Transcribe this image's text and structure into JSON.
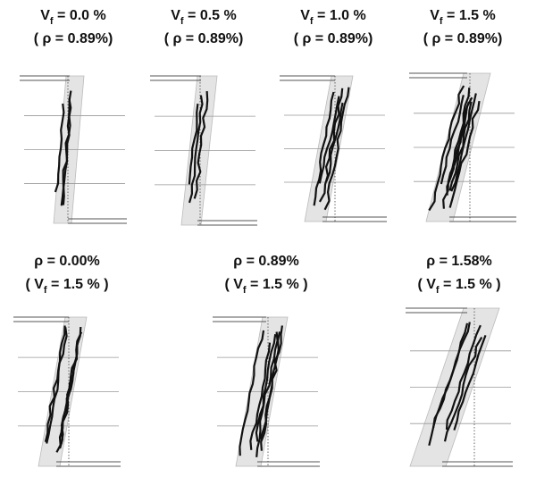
{
  "panels": [
    {
      "lines": [
        [
          {
            "text": "V"
          },
          {
            "sub": "f"
          },
          {
            "text": " = 0.0 %"
          }
        ],
        [
          {
            "text": "( ρ = 0.89%)"
          }
        ]
      ]
    },
    {
      "lines": [
        [
          {
            "text": "V"
          },
          {
            "sub": "f"
          },
          {
            "text": " = 0.5 %"
          }
        ],
        [
          {
            "text": "( ρ = 0.89%)"
          }
        ]
      ]
    },
    {
      "lines": [
        [
          {
            "text": "V"
          },
          {
            "sub": "f"
          },
          {
            "text": " = 1.0 %"
          }
        ],
        [
          {
            "text": "( ρ = 0.89%)"
          }
        ]
      ]
    },
    {
      "lines": [
        [
          {
            "text": "V"
          },
          {
            "sub": "f"
          },
          {
            "text": " = 1.5 %"
          }
        ],
        [
          {
            "text": "( ρ = 0.89%)"
          }
        ]
      ]
    },
    {
      "lines": [
        [
          {
            "text": "ρ = 0.00%"
          }
        ],
        [
          {
            "text": "( V"
          },
          {
            "sub": "f"
          },
          {
            "text": " = 1.5 % )"
          }
        ]
      ]
    },
    {
      "lines": [
        [
          {
            "text": "ρ = 0.89%"
          }
        ],
        [
          {
            "text": "( V"
          },
          {
            "sub": "f"
          },
          {
            "text": " = 1.5 % )"
          }
        ]
      ]
    },
    {
      "lines": [
        [
          {
            "text": "ρ = 1.58%"
          }
        ],
        [
          {
            "text": "( V"
          },
          {
            "sub": "f"
          },
          {
            "text": " = 1.5 % )"
          }
        ]
      ]
    }
  ]
}
